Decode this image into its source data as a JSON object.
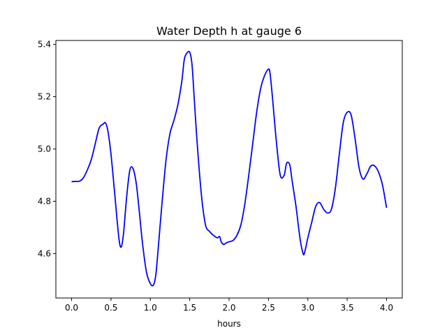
{
  "chart_data": {
    "type": "line",
    "title": "Water Depth h at gauge 6",
    "xlabel": "hours",
    "ylabel": "",
    "xlim": [
      -0.2,
      4.2
    ],
    "ylim": [
      4.43,
      5.415
    ],
    "xticks": [
      0.0,
      0.5,
      1.0,
      1.5,
      2.0,
      2.5,
      3.0,
      3.5,
      4.0
    ],
    "xtick_labels": [
      "0.0",
      "0.5",
      "1.0",
      "1.5",
      "2.0",
      "2.5",
      "3.0",
      "3.5",
      "4.0"
    ],
    "yticks": [
      4.6,
      4.8,
      5.0,
      5.2,
      5.4
    ],
    "ytick_labels": [
      "4.6",
      "4.8",
      "5.0",
      "5.2",
      "5.4"
    ],
    "grid": false,
    "series": [
      {
        "color": "#0000ff",
        "x": [
          0.0,
          0.05,
          0.1,
          0.15,
          0.2,
          0.25,
          0.3,
          0.35,
          0.4,
          0.43,
          0.46,
          0.5,
          0.55,
          0.6,
          0.63,
          0.66,
          0.7,
          0.74,
          0.78,
          0.82,
          0.86,
          0.9,
          0.95,
          1.0,
          1.04,
          1.07,
          1.1,
          1.15,
          1.2,
          1.25,
          1.3,
          1.35,
          1.4,
          1.43,
          1.46,
          1.5,
          1.53,
          1.56,
          1.6,
          1.65,
          1.7,
          1.75,
          1.8,
          1.85,
          1.88,
          1.9,
          1.93,
          1.96,
          2.0,
          2.05,
          2.1,
          2.15,
          2.2,
          2.25,
          2.3,
          2.35,
          2.4,
          2.45,
          2.5,
          2.52,
          2.55,
          2.6,
          2.65,
          2.7,
          2.73,
          2.77,
          2.8,
          2.85,
          2.9,
          2.94,
          2.96,
          3.0,
          3.05,
          3.1,
          3.15,
          3.2,
          3.25,
          3.3,
          3.35,
          3.4,
          3.45,
          3.5,
          3.55,
          3.6,
          3.65,
          3.7,
          3.75,
          3.8,
          3.85,
          3.9,
          3.95,
          4.0
        ],
        "y": [
          4.875,
          4.876,
          4.877,
          4.89,
          4.92,
          4.96,
          5.02,
          5.08,
          5.095,
          5.1,
          5.07,
          4.98,
          4.82,
          4.66,
          4.625,
          4.68,
          4.82,
          4.92,
          4.925,
          4.87,
          4.76,
          4.64,
          4.53,
          4.485,
          4.48,
          4.52,
          4.62,
          4.8,
          4.96,
          5.06,
          5.11,
          5.17,
          5.26,
          5.34,
          5.365,
          5.37,
          5.32,
          5.18,
          5.0,
          4.82,
          4.71,
          4.685,
          4.67,
          4.66,
          4.665,
          4.645,
          4.635,
          4.64,
          4.645,
          4.65,
          4.67,
          4.71,
          4.79,
          4.9,
          5.02,
          5.14,
          5.23,
          5.28,
          5.305,
          5.29,
          5.2,
          5.03,
          4.9,
          4.9,
          4.945,
          4.94,
          4.88,
          4.78,
          4.66,
          4.6,
          4.605,
          4.66,
          4.72,
          4.78,
          4.795,
          4.77,
          4.755,
          4.77,
          4.85,
          4.98,
          5.1,
          5.14,
          5.13,
          5.04,
          4.93,
          4.885,
          4.905,
          4.935,
          4.935,
          4.91,
          4.86,
          4.775
        ]
      }
    ]
  }
}
